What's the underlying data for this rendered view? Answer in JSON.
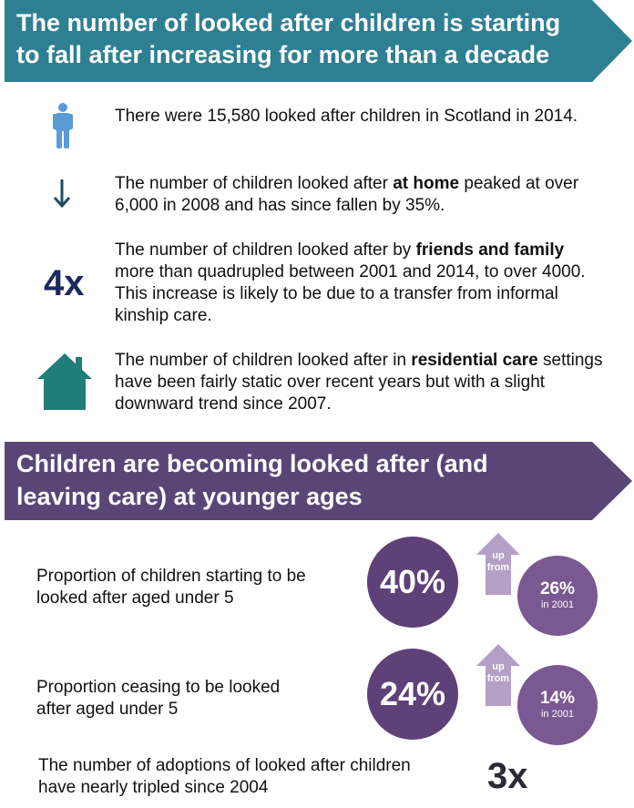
{
  "section1": {
    "banner_line1": "The number of looked after children is starting",
    "banner_line2": "to fall after increasing for more than a decade",
    "banner_color": "#2f7f93",
    "items": [
      {
        "icon": "person-icon",
        "text": "There were 15,580 looked after children in Scotland in 2014."
      },
      {
        "icon": "down-arrow-icon",
        "pre": "The number of children looked after ",
        "bold": "at home",
        "post": " peaked at over 6,000 in 2008 and has since fallen by 35%."
      },
      {
        "icon": "4x",
        "pre": "The number of children looked after by ",
        "bold": "friends and family",
        "post": " more than quadrupled between 2001 and 2014, to over 4000. This increase is likely to be due to a transfer from informal kinship care."
      },
      {
        "icon": "house-icon",
        "pre": "The number of children looked after in ",
        "bold": "residential care",
        "post": " settings have been fairly static over recent years but with a slight downward trend since 2007."
      }
    ],
    "four_x_label": "4x"
  },
  "section2": {
    "banner_line1": "Children are becoming looked after (and",
    "banner_line2": "leaving care) at younger ages",
    "banner_color": "#5a4577",
    "stats": [
      {
        "label_line1": "Proportion of children starting to be",
        "label_line2": "looked after aged under 5",
        "value": "40%",
        "up_line1": "up",
        "up_line2": "from",
        "prev_value": "26%",
        "prev_year": "in 2001"
      },
      {
        "label_line1": "Proportion ceasing to be looked",
        "label_line2": "after aged under 5",
        "value": "24%",
        "up_line1": "up",
        "up_line2": "from",
        "prev_value": "14%",
        "prev_year": "in 2001"
      }
    ],
    "adoptions_line1": "The number of adoptions of looked after children",
    "adoptions_line2": "have nearly tripled since 2004",
    "three_x_label": "3x"
  }
}
